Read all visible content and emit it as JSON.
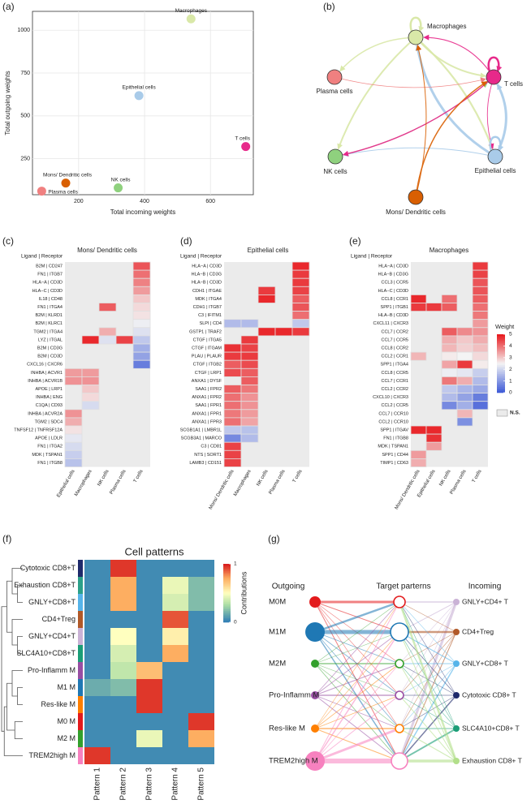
{
  "chart_data": [
    {
      "type": "scatter",
      "label": "(a)",
      "x_label": "Total incoming weights",
      "y_label": "Total outgoing weights",
      "categories": [
        "Macrophages",
        "Epithelial cells",
        "T cells",
        "Mons/ Dendritic cells",
        "NK cells",
        "Plasma cells"
      ],
      "x": [
        541,
        383,
        707,
        161,
        320,
        88
      ],
      "values": [
        1066,
        618,
        321,
        108,
        80,
        61
      ],
      "colors": [
        "#d9e8a8",
        "#a9cbe9",
        "#e7298a",
        "#d95f02",
        "#8fd17e",
        "#f08080"
      ],
      "xlim": [
        60,
        730
      ],
      "xticks": [
        200,
        400,
        600
      ],
      "ylim": [
        40,
        1110
      ],
      "yticks": [
        250,
        500,
        750,
        1000
      ],
      "grid": true
    },
    {
      "type": "network",
      "label": "(b)",
      "nodes": [
        {
          "name": "Macrophages",
          "color": "#d9e8a8"
        },
        {
          "name": "T cells",
          "color": "#e7298a"
        },
        {
          "name": "Plasma cells",
          "color": "#f08080"
        },
        {
          "name": "NK cells",
          "color": "#8fd17e"
        },
        {
          "name": "Epithelial cells",
          "color": "#a9cbe9"
        },
        {
          "name": "Mons/ Dendritic cells",
          "color": "#d95f02"
        }
      ]
    },
    {
      "type": "heatmap",
      "label": "(c)",
      "title": "Mons/ Dendritic cells",
      "row_header": "Ligand | Receptor",
      "columns": [
        "Epithelial cells",
        "Macrophages",
        "NK cells",
        "Plasma cells",
        "T cells"
      ],
      "rows": [
        "B2M | CD247",
        "FN1 | ITGB7",
        "HLA−A | CD3D",
        "HLA−C | CD3D",
        "IL18 | CD48",
        "FN1 | ITGA4",
        "B2M | KLRD1",
        "B2M | KLRC1",
        "TGM2 | ITGA4",
        "LYZ | ITGAL",
        "B2M | CD3G",
        "B2M | CD3D",
        "CXCL16 | CXCR6",
        "INHBA | ACVR1",
        "INHBA | ACVR1B",
        "APOE | LRP1",
        "INHBA | ENG",
        "C1QA | CD93",
        "INHBA | ACVR2A",
        "TGM2 | SDC4",
        "TNFSF12 | TNFRSF12A",
        "APOE | LDLR",
        "FN1 | ITGA2",
        "MDK | TSPAN1",
        "FN1 | ITGB8"
      ],
      "values": [
        [
          null,
          null,
          null,
          null,
          4.3
        ],
        [
          null,
          null,
          null,
          null,
          4.0
        ],
        [
          null,
          null,
          null,
          null,
          3.8
        ],
        [
          null,
          null,
          null,
          null,
          3.5
        ],
        [
          null,
          null,
          null,
          null,
          3.0
        ],
        [
          null,
          null,
          4.2,
          null,
          2.8
        ],
        [
          null,
          null,
          null,
          null,
          2.7
        ],
        [
          null,
          null,
          null,
          null,
          2.4
        ],
        [
          null,
          null,
          3.3,
          null,
          2.2
        ],
        [
          null,
          4.8,
          2.2,
          4.5,
          1.8
        ],
        [
          null,
          null,
          null,
          null,
          1.4
        ],
        [
          null,
          null,
          null,
          null,
          1.2
        ],
        [
          null,
          null,
          null,
          null,
          0.6
        ],
        [
          3.5,
          3.5,
          null,
          null,
          null
        ],
        [
          3.6,
          3.6,
          null,
          null,
          null
        ],
        [
          null,
          3.0,
          null,
          null,
          null
        ],
        [
          null,
          2.8,
          null,
          null,
          null
        ],
        [
          null,
          2.1,
          null,
          null,
          null
        ],
        [
          3.6,
          null,
          null,
          null,
          null
        ],
        [
          3.3,
          null,
          null,
          null,
          null
        ],
        [
          2.7,
          null,
          null,
          null,
          null
        ],
        [
          2.3,
          null,
          null,
          null,
          null
        ],
        [
          2.1,
          null,
          null,
          null,
          null
        ],
        [
          1.9,
          null,
          null,
          null,
          null
        ],
        [
          1.7,
          null,
          null,
          null,
          null
        ]
      ],
      "zlim": [
        0,
        5
      ]
    },
    {
      "type": "heatmap",
      "label": "(d)",
      "title": "Epithelial cells",
      "row_header": "Ligand | Receptor",
      "columns": [
        "Mons/ Dendritic cells",
        "Macrophages",
        "NK cells",
        "Plasma cells",
        "T cells"
      ],
      "rows": [
        "HLA−A | CD3D",
        "HLA−B | CD3G",
        "HLA−B | CD3D",
        "CDH1 | ITGAE",
        "MDK | ITGA4",
        "CDH1 | ITGB7",
        "C3 | IFITM1",
        "SLPI | CD4",
        "GSTP1 | TRAF2",
        "CTGF | ITGA5",
        "CTGF | ITGAM",
        "PLAU | PLAUR",
        "CTGF | ITGB2",
        "CTGF | LRP1",
        "ANXA1 | DYSF",
        "SAA1 | FPR2",
        "ANXA1 | FPR2",
        "SAA1 | FPR1",
        "ANXA1 | FPR1",
        "ANXA1 | FPR3",
        "SCGB1A1 | LMBR1L",
        "SCGB3A1 | MARCO",
        "C3 | CD81",
        "NTS | SORT1",
        "LAMB3 | CD151"
      ],
      "values": [
        [
          null,
          null,
          null,
          null,
          4.8
        ],
        [
          null,
          null,
          null,
          null,
          4.6
        ],
        [
          null,
          null,
          null,
          null,
          4.6
        ],
        [
          null,
          null,
          4.6,
          null,
          4.5
        ],
        [
          null,
          null,
          4.8,
          null,
          4.2
        ],
        [
          null,
          null,
          null,
          null,
          4.3
        ],
        [
          null,
          null,
          null,
          null,
          4.0
        ],
        [
          1.6,
          1.6,
          null,
          null,
          1.8
        ],
        [
          null,
          null,
          4.8,
          4.8,
          4.6
        ],
        [
          null,
          4.6,
          null,
          null,
          null
        ],
        [
          4.7,
          4.5,
          null,
          null,
          null
        ],
        [
          4.6,
          4.6,
          null,
          null,
          null
        ],
        [
          4.2,
          4.4,
          null,
          null,
          null
        ],
        [
          4.4,
          4.2,
          null,
          null,
          null
        ],
        [
          null,
          4.2,
          null,
          null,
          null
        ],
        [
          4.2,
          3.9,
          null,
          null,
          null
        ],
        [
          4.0,
          3.6,
          null,
          null,
          null
        ],
        [
          4.0,
          3.6,
          null,
          null,
          null
        ],
        [
          3.9,
          3.5,
          null,
          null,
          null
        ],
        [
          4.0,
          3.4,
          null,
          null,
          null
        ],
        [
          1.8,
          1.7,
          null,
          null,
          null
        ],
        [
          0.8,
          1.6,
          null,
          null,
          null
        ],
        [
          4.5,
          null,
          null,
          null,
          null
        ],
        [
          4.5,
          null,
          null,
          null,
          null
        ],
        [
          4.5,
          null,
          null,
          null,
          null
        ]
      ],
      "zlim": [
        0,
        5
      ]
    },
    {
      "type": "heatmap",
      "label": "(e)",
      "title": "Macrophages",
      "row_header": "Ligand | Receptor",
      "columns": [
        "Mons/ Dendritic cells",
        "Epithelial cells",
        "NK cells",
        "Plasma cells",
        "T cells"
      ],
      "rows": [
        "HLA−A | CD3D",
        "HLA−B | CD3G",
        "CCL3 | CCR5",
        "HLA−C | CD3D",
        "CCL8 | CCR1",
        "SPP1 | ITGB1",
        "HLA−B | CD3D",
        "CXCL11 | CXCR3",
        "CCL7 | CCR2",
        "CCL7 | CCR5",
        "CCL8 | CCR2",
        "CCL2 | CCR1",
        "SPP1 | ITGA4",
        "CCL8 | CCR5",
        "CCL7 | CCR1",
        "CCL2 | CCR2",
        "CXCL10 | CXCR3",
        "CCL2 | CCR5",
        "CCL7 | CCR10",
        "CCL2 | CCR10",
        "SPP1 | ITGAV",
        "FN1 | ITGB8",
        "MDK | TSPAN1",
        "SPP1 | CD44",
        "TIMP1 | CD63"
      ],
      "values": [
        [
          null,
          null,
          null,
          null,
          4.6
        ],
        [
          null,
          null,
          null,
          null,
          4.5
        ],
        [
          null,
          null,
          null,
          null,
          4.3
        ],
        [
          null,
          null,
          null,
          null,
          4.3
        ],
        [
          4.8,
          null,
          4.0,
          null,
          4.2
        ],
        [
          4.6,
          4.6,
          4.2,
          null,
          4.0
        ],
        [
          null,
          null,
          null,
          null,
          3.9
        ],
        [
          null,
          null,
          null,
          null,
          3.5
        ],
        [
          null,
          null,
          4.2,
          3.7,
          3.6
        ],
        [
          null,
          null,
          3.3,
          3.0,
          3.3
        ],
        [
          null,
          null,
          3.2,
          2.9,
          3.1
        ],
        [
          3.2,
          null,
          2.6,
          2.5,
          2.8
        ],
        [
          null,
          null,
          3.4,
          4.6,
          2.6
        ],
        [
          null,
          null,
          2.4,
          2.3,
          1.9
        ],
        [
          null,
          null,
          3.9,
          3.3,
          1.6
        ],
        [
          null,
          null,
          1.8,
          1.5,
          1.3
        ],
        [
          null,
          null,
          1.6,
          1.2,
          0.6
        ],
        [
          null,
          null,
          0.8,
          1.4,
          0.4
        ],
        [
          null,
          null,
          null,
          3.2,
          null
        ],
        [
          null,
          null,
          null,
          0.9,
          null
        ],
        [
          4.8,
          4.8,
          null,
          null,
          null
        ],
        [
          null,
          4.7,
          null,
          null,
          null
        ],
        [
          null,
          3.5,
          null,
          null,
          null
        ],
        [
          3.5,
          null,
          null,
          null,
          null
        ],
        [
          3.3,
          null,
          null,
          null,
          null
        ]
      ],
      "zlim": [
        0,
        5
      ],
      "colorbar_title": "Weight",
      "colorbar_ticks": [
        0,
        1,
        2,
        3,
        4,
        5
      ],
      "na_label": "N.S."
    },
    {
      "type": "heatmap",
      "label": "(f)",
      "title": "Cell patterns",
      "columns": [
        "Pattern 1",
        "Pattern 2",
        "Pattern 3",
        "Pattern 4",
        "Pattern 5"
      ],
      "rows": [
        "Cytotoxic CD8+T",
        "Exhaustion CD8+T",
        "GNLY+CD8+T",
        "CD4+Treg",
        "GNLY+CD4+T",
        "SLC4A10+CD8+T",
        "Pro-Inflamm M",
        "M1 M",
        "Res-like M",
        "M0 M",
        "M2 M",
        "TREM2high M"
      ],
      "row_colors": [
        "#1f2a6b",
        "#2ca089",
        "#56b4e9",
        "#b15928",
        "#cab2d6",
        "#1b9e77",
        "#984ea3",
        "#1f78b4",
        "#ff7f00",
        "#e31a1c",
        "#33a02c",
        "#f781bf"
      ],
      "values": [
        [
          0.05,
          0.95,
          0.05,
          0.05,
          0.05
        ],
        [
          0.05,
          0.75,
          0.05,
          0.45,
          0.2
        ],
        [
          0.05,
          0.75,
          0.05,
          0.4,
          0.2
        ],
        [
          0.05,
          0.05,
          0.05,
          0.9,
          0.05
        ],
        [
          0.05,
          0.5,
          0.05,
          0.55,
          0.05
        ],
        [
          0.05,
          0.4,
          0.05,
          0.75,
          0.05
        ],
        [
          0.05,
          0.35,
          0.7,
          0.05,
          0.05
        ],
        [
          0.15,
          0.2,
          0.95,
          0.05,
          0.05
        ],
        [
          0.05,
          0.05,
          0.95,
          0.05,
          0.05
        ],
        [
          0.05,
          0.05,
          0.05,
          0.05,
          0.95
        ],
        [
          0.05,
          0.05,
          0.45,
          0.05,
          0.75
        ],
        [
          0.95,
          0.05,
          0.05,
          0.05,
          0.05
        ]
      ],
      "zlim": [
        0,
        1
      ],
      "colorbar_title": "Contributions",
      "colorbar_ticks": [
        0,
        1
      ]
    },
    {
      "type": "flow",
      "label": "(g)",
      "headers": [
        "Outgoing",
        "Target parterns",
        "Incoming"
      ],
      "sources": [
        {
          "name": "M0M",
          "color": "#e31a1c"
        },
        {
          "name": "M1M",
          "color": "#1f78b4"
        },
        {
          "name": "M2M",
          "color": "#33a02c"
        },
        {
          "name": "Pro-Inflamm M",
          "color": "#984ea3"
        },
        {
          "name": "Res-like M",
          "color": "#ff7f00"
        },
        {
          "name": "TREM2high M",
          "color": "#f781bf"
        }
      ],
      "targets": [
        {
          "name": "GNLY+CD4+ T",
          "color": "#cab2d6"
        },
        {
          "name": "CD4+Treg",
          "color": "#b15928"
        },
        {
          "name": "GNLY+CD8+ T",
          "color": "#56b4e9"
        },
        {
          "name": "Cytotoxic CD8+ T",
          "color": "#1f2a6b"
        },
        {
          "name": "SLC4A10+CD8+ T",
          "color": "#1b9e77"
        },
        {
          "name": "Exhaustion CD8+ T",
          "color": "#b2df8a"
        }
      ]
    }
  ]
}
